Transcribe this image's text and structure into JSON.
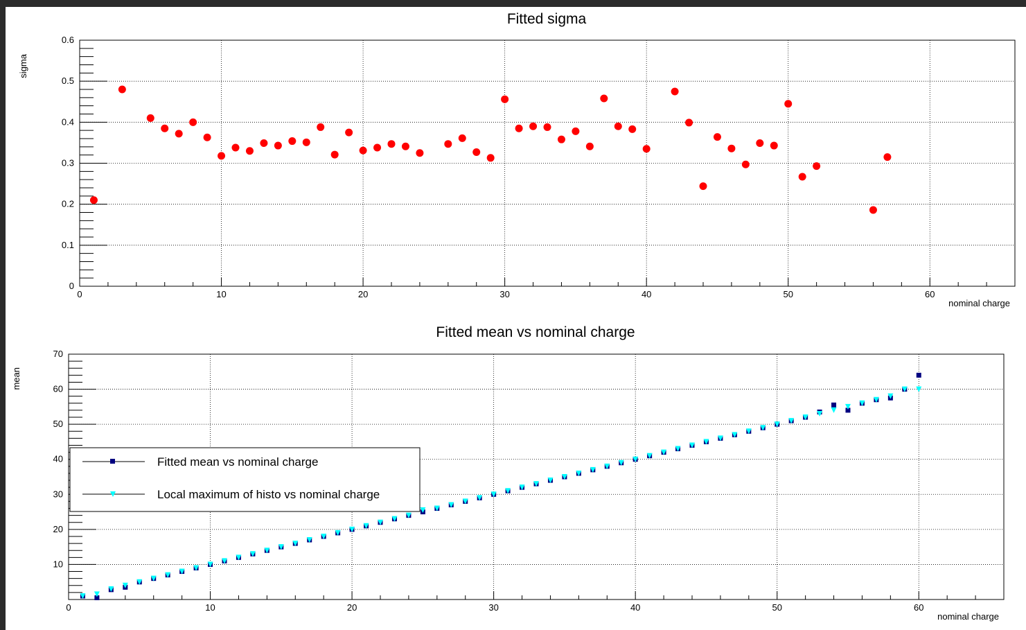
{
  "canvas": {
    "background": "#ffffff",
    "frame_color": "#2b2b2b"
  },
  "chart_data": [
    {
      "type": "scatter",
      "title": "Fitted sigma",
      "xlabel": "nominal charge",
      "ylabel": "sigma",
      "xlim": [
        0,
        66
      ],
      "ylim": [
        0,
        0.6
      ],
      "x_ticks": [
        "0",
        "10",
        "20",
        "30",
        "40",
        "50",
        "60"
      ],
      "y_ticks": [
        "0",
        "0.1",
        "0.2",
        "0.3",
        "0.4",
        "0.5",
        "0.6"
      ],
      "grid": true,
      "marker": "circle",
      "color": "#ff0000",
      "series": [
        {
          "x": [
            1,
            3,
            5,
            6,
            7,
            8,
            9,
            10,
            11,
            12,
            13,
            14,
            15,
            16,
            17,
            18,
            19,
            20,
            21,
            22,
            23,
            24,
            26,
            27,
            28,
            29,
            30,
            31,
            32,
            33,
            34,
            35,
            36,
            37,
            38,
            39,
            40,
            42,
            43,
            44,
            45,
            46,
            47,
            48,
            49,
            50,
            51,
            52,
            56,
            57
          ],
          "values": [
            0.21,
            0.48,
            0.41,
            0.385,
            0.372,
            0.4,
            0.363,
            0.318,
            0.338,
            0.33,
            0.349,
            0.343,
            0.354,
            0.351,
            0.388,
            0.321,
            0.375,
            0.331,
            0.338,
            0.347,
            0.341,
            0.325,
            0.347,
            0.361,
            0.327,
            0.313,
            0.456,
            0.385,
            0.39,
            0.388,
            0.358,
            0.378,
            0.341,
            0.458,
            0.39,
            0.383,
            0.335,
            0.475,
            0.399,
            0.244,
            0.364,
            0.336,
            0.297,
            0.349,
            0.343,
            0.445,
            0.267,
            0.293,
            0.186,
            0.315
          ]
        }
      ]
    },
    {
      "type": "scatter",
      "title": "Fitted mean vs nominal charge",
      "xlabel": "nominal charge",
      "ylabel": "mean",
      "xlim": [
        0,
        66
      ],
      "ylim": [
        0,
        70
      ],
      "x_ticks": [
        "0",
        "10",
        "20",
        "30",
        "40",
        "50",
        "60"
      ],
      "y_ticks": [
        "10",
        "20",
        "30",
        "40",
        "50",
        "60",
        "70"
      ],
      "grid": true,
      "legend_position": "left",
      "series": [
        {
          "name": "Fitted mean vs nominal charge",
          "marker": "square",
          "color": "#000080",
          "x": [
            1,
            2,
            3,
            4,
            5,
            6,
            7,
            8,
            9,
            10,
            11,
            12,
            13,
            14,
            15,
            16,
            17,
            18,
            19,
            20,
            21,
            22,
            23,
            24,
            25,
            26,
            27,
            28,
            29,
            30,
            31,
            32,
            33,
            34,
            35,
            36,
            37,
            38,
            39,
            40,
            41,
            42,
            43,
            44,
            45,
            46,
            47,
            48,
            49,
            50,
            51,
            52,
            53,
            54,
            55,
            56,
            57,
            58,
            59,
            60
          ],
          "values": [
            1.0,
            0.5,
            2.8,
            3.5,
            5.0,
            6.0,
            7.0,
            8.0,
            9.0,
            10.0,
            11.0,
            12.0,
            13.0,
            14.0,
            15.0,
            16.0,
            17.0,
            18.0,
            19.0,
            20.0,
            21.0,
            22.0,
            23.0,
            24.0,
            25.0,
            26.0,
            27.0,
            28.0,
            29.0,
            30.0,
            31.0,
            32.0,
            33.0,
            34.0,
            35.0,
            36.0,
            37.0,
            38.0,
            39.0,
            40.0,
            41.0,
            42.0,
            43.0,
            44.0,
            45.0,
            46.0,
            47.0,
            48.0,
            49.0,
            50.0,
            51.0,
            52.0,
            53.5,
            55.5,
            54.0,
            56.0,
            57.0,
            57.5,
            60.0,
            64.0
          ]
        },
        {
          "name": "Local maximum of histo vs nominal charge",
          "marker": "triangle-down",
          "color": "#00ffff",
          "x": [
            1,
            2,
            3,
            4,
            5,
            6,
            7,
            8,
            9,
            10,
            11,
            12,
            13,
            14,
            15,
            16,
            17,
            18,
            19,
            20,
            21,
            22,
            23,
            24,
            25,
            26,
            27,
            28,
            29,
            30,
            31,
            32,
            33,
            34,
            35,
            36,
            37,
            38,
            39,
            40,
            41,
            42,
            43,
            44,
            45,
            46,
            47,
            48,
            49,
            50,
            51,
            52,
            53,
            54,
            55,
            56,
            57,
            58,
            59,
            60
          ],
          "values": [
            1.0,
            1.5,
            3.0,
            4.0,
            5.0,
            6.0,
            7.0,
            8.0,
            9.0,
            10.0,
            11.0,
            12.0,
            13.0,
            14.0,
            15.0,
            16.0,
            17.0,
            18.0,
            19.0,
            20.0,
            21.0,
            22.0,
            23.0,
            24.0,
            25.5,
            26.0,
            27.0,
            28.0,
            29.0,
            30.0,
            31.0,
            32.0,
            33.0,
            34.0,
            35.0,
            36.0,
            37.0,
            38.0,
            39.0,
            40.0,
            41.0,
            42.0,
            43.0,
            44.0,
            45.0,
            46.0,
            47.0,
            48.0,
            49.0,
            50.0,
            51.0,
            52.0,
            53.0,
            54.0,
            55.0,
            56.0,
            57.0,
            58.0,
            60.0,
            60.0
          ]
        }
      ]
    }
  ]
}
